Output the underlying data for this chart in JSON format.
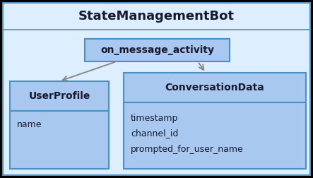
{
  "bg_color": "#ddeeff",
  "box_fill": "#a8c8f0",
  "box_edge": "#4a90c4",
  "title": "StateManagementBot",
  "method_label": "on_message_activity",
  "user_title": "UserProfile",
  "user_attrs": [
    "name"
  ],
  "conv_title": "ConversationData",
  "conv_attrs": [
    "timestamp",
    "channel_id",
    "prompted_for_user_name"
  ],
  "title_fontsize": 13,
  "method_fontsize": 10,
  "class_title_fontsize": 10,
  "attr_fontsize": 9,
  "arrow_color": "#888888",
  "text_color": "#1a1a2e"
}
